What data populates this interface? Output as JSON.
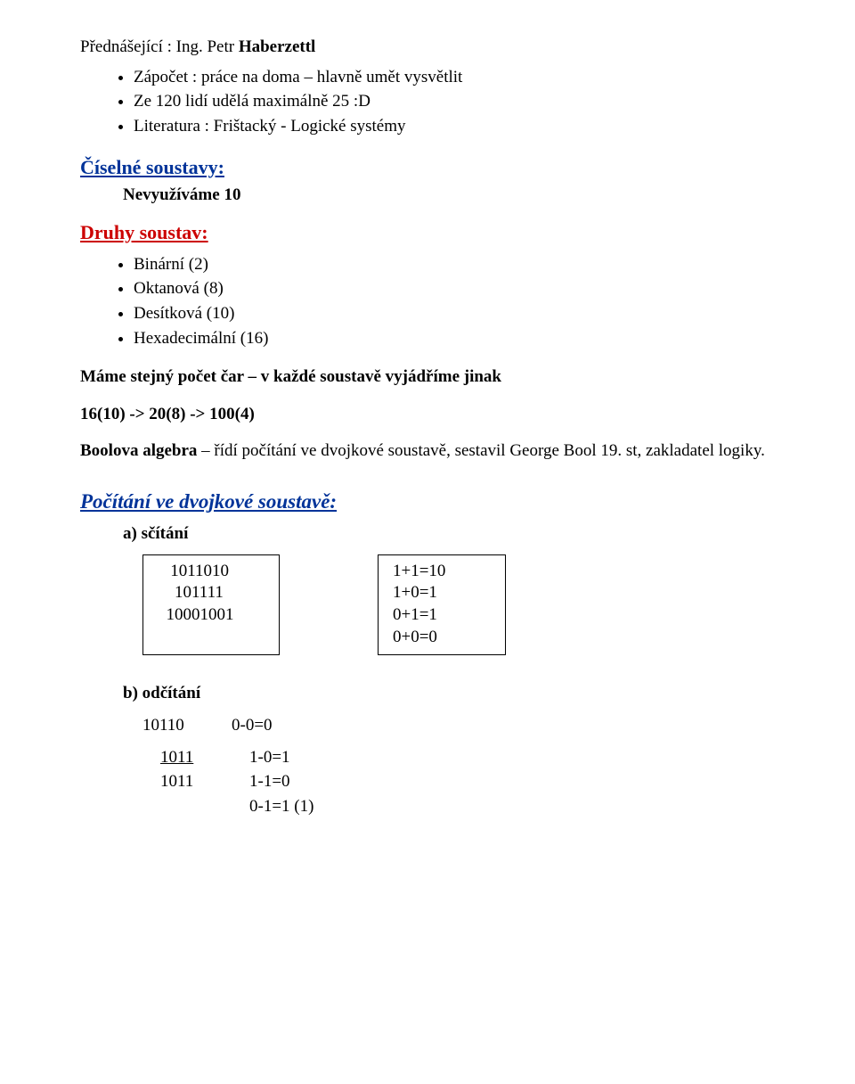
{
  "lecturer": {
    "label": "Přednášející : Ing. Petr ",
    "name_bold": "Haberzettl"
  },
  "intro_bullets": [
    "Zápočet : práce na doma – hlavně umět vysvětlit",
    "Ze 120 lidí udělá maximálně 25 :D",
    "Literatura : Frištacký - Logické systémy"
  ],
  "heading_numsys": "Číselné soustavy:",
  "numsys_note_bold": "Nevyužíváme 10",
  "heading_types": "Druhy soustav:",
  "types_bullets": [
    "Binární (2)",
    "Oktanová (8)",
    "Desítková (10)",
    "Hexadecimální (16)"
  ],
  "same_count": "Máme stejný počet čar – v každé soustavě vyjádříme jinak",
  "conversion": "16(10) -> 20(8) -> 100(4)",
  "bool_bold": "Boolova algebra",
  "bool_rest": " – řídí počítání ve dvojkové soustavě, sestavil George Bool 19. st, zakladatel logiky.",
  "binary_heading": "Počítání ve dvojkové soustavě:",
  "item_a": "a) sčítání",
  "item_b": "b) odčítání",
  "add_box": "   1011010\n    101111\n  10001001",
  "add_rules": "1+1=10\n1+0=1\n0+1=1\n0+0=0",
  "sub_row1_a": "10110",
  "sub_row1_b": "0-0=0",
  "sub_row2_a": "1011",
  "sub_row2_b": "1-0=1",
  "sub_row3_a": "1011",
  "sub_row3_b": "1-1=0",
  "sub_row4_b": "0-1=1 (1)"
}
